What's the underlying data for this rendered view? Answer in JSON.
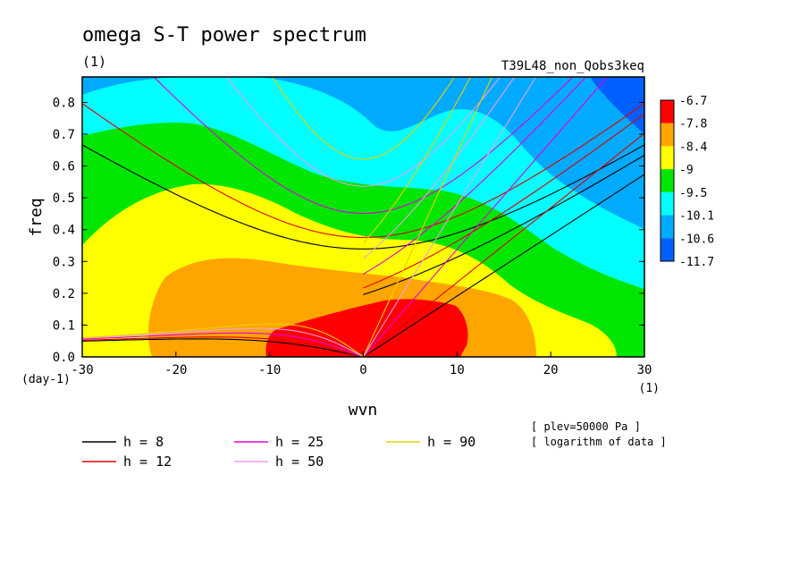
{
  "chart_data": {
    "type": "heatmap",
    "title": "omega S-T power spectrum",
    "subtitle": "(1)",
    "run_label": "T39L48_non_Qobs3keq",
    "xlabel": "wvn",
    "xunit": "(1)",
    "ylabel": "freq",
    "yunit": "(day-1)",
    "xlim": [
      -30,
      30
    ],
    "ylim": [
      0,
      0.88
    ],
    "xticks": [
      -30,
      -20,
      -10,
      0,
      10,
      20,
      30
    ],
    "yticks": [
      0.0,
      0.1,
      0.2,
      0.3,
      0.4,
      0.5,
      0.6,
      0.7,
      0.8
    ],
    "colorbar": {
      "labels": [
        "-6.7",
        "-7.8",
        "-8.4",
        "-9",
        "-9.5",
        "-10.1",
        "-10.6",
        "-11.7"
      ],
      "colors": [
        "#ff0000",
        "#ffa500",
        "#ffff00",
        "#00e600",
        "#00ffff",
        "#00aaff",
        "#0060ff"
      ]
    },
    "dispersion_curves": [
      {
        "name": "h =  8",
        "color": "#000000",
        "h": 8
      },
      {
        "name": "h = 12",
        "color": "#e00000",
        "h": 12
      },
      {
        "name": "h = 25",
        "color": "#e000e0",
        "h": 25
      },
      {
        "name": "h = 50",
        "color": "#e8a0e8",
        "h": 50
      },
      {
        "name": "h = 90",
        "color": "#e8d000",
        "h": 90
      }
    ],
    "notes": [
      "[ plev=50000 Pa ]",
      "[ logarithm of data ]"
    ]
  }
}
